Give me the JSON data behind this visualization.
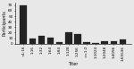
{
  "x_labels": [
    "<1:16",
    "1:16",
    "1:32",
    "1:64",
    "1:84",
    "1:128",
    "1:256",
    ">=1:2",
    "1:1024",
    "1:2048",
    "1:4096",
    "1:65536"
  ],
  "values": [
    70,
    10,
    14,
    11,
    3,
    20,
    17,
    3,
    1,
    5,
    5,
    7
  ],
  "bar_color": "#222222",
  "background_color": "#e8e8e8",
  "xlabel": "Titer",
  "ylabel": "Participants",
  "ylim": [
    0,
    75
  ],
  "yticks": [
    0,
    10,
    20,
    30,
    40,
    50,
    60,
    70
  ],
  "axis_fontsize": 3.5,
  "tick_fontsize": 3.0,
  "label_fontsize": 3.2
}
